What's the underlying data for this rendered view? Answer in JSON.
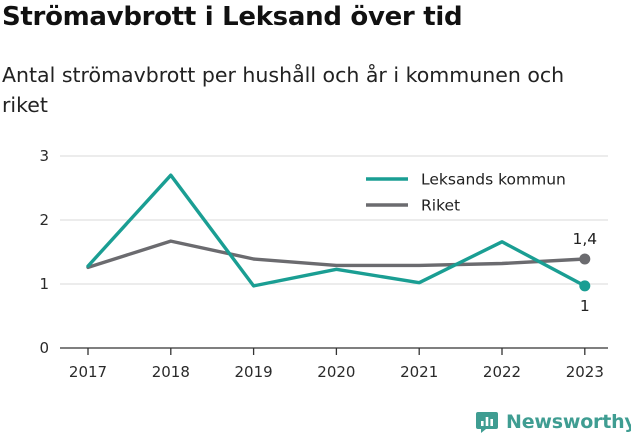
{
  "title": "Strömavbrott i Leksand över tid",
  "subtitle": "Antal strömavbrott per hushåll och år i kommunen och riket",
  "brand": "Newsworthy",
  "colors": {
    "leksand": "#1a9e93",
    "riket": "#6b6b6f",
    "grid": "#d9d9d9",
    "axis": "#333333",
    "brand": "#3f9d92"
  },
  "chart_data": {
    "type": "line",
    "x": [
      "2017",
      "2018",
      "2019",
      "2020",
      "2021",
      "2022",
      "2023"
    ],
    "series": [
      {
        "name": "Leksands kommun",
        "values": [
          1.28,
          2.7,
          0.97,
          1.23,
          1.02,
          1.66,
          0.97
        ]
      },
      {
        "name": "Riket",
        "values": [
          1.26,
          1.67,
          1.39,
          1.29,
          1.29,
          1.32,
          1.39
        ]
      }
    ],
    "end_labels": {
      "Leksands kommun": "1",
      "Riket": "1,4"
    },
    "yticks": [
      0,
      1,
      2,
      3
    ],
    "ylim": [
      0,
      3
    ],
    "grid": true,
    "legend": "top-right"
  }
}
